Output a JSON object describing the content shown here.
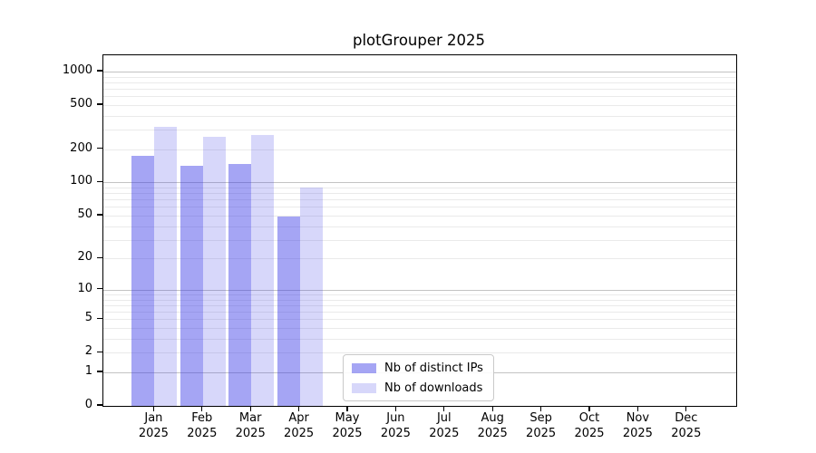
{
  "figure": {
    "background": "#ffffff"
  },
  "chart_data": {
    "type": "bar",
    "title": "plotGrouper 2025",
    "categories": [
      "Jan 2025",
      "Feb 2025",
      "Mar 2025",
      "Apr 2025",
      "May 2025",
      "Jun 2025",
      "Jul 2025",
      "Aug 2025",
      "Sep 2025",
      "Oct 2025",
      "Nov 2025",
      "Dec 2025"
    ],
    "series": [
      {
        "name": "Nb of distinct IPs",
        "color": "rgba(55,55,230,0.45)",
        "values": [
          175,
          142,
          146,
          49,
          0,
          0,
          0,
          0,
          0,
          0,
          0,
          0
        ]
      },
      {
        "name": "Nb of downloads",
        "color": "rgba(55,55,230,0.20)",
        "values": [
          320,
          260,
          270,
          90,
          0,
          0,
          0,
          0,
          0,
          0,
          0,
          0
        ]
      }
    ],
    "yscale": "log1p",
    "yticks": [
      0,
      1,
      2,
      5,
      10,
      20,
      50,
      100,
      200,
      500,
      1000
    ],
    "ylim": [
      0,
      1374
    ],
    "xlabel": "",
    "ylabel": "",
    "grid": "both",
    "legend_position": "lower-left-of-center",
    "colors": {
      "major_grid": "#c3c3c3",
      "minor_grid": "#eaeaea",
      "axis": "#000000",
      "legend_border": "#c9c9c9"
    }
  }
}
